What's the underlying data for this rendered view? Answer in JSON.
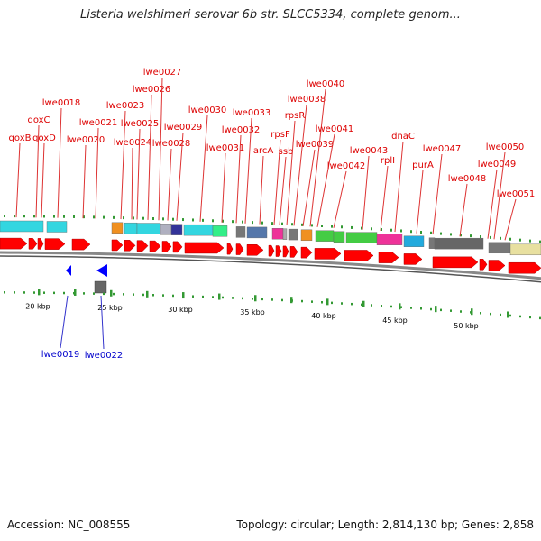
{
  "title": "Listeria welshimeri serovar 6b str. SLCC5334, complete genom...",
  "footer": {
    "accession": "Accession: NC_008555",
    "summary": "Topology: circular; Length: 2,814,130 bp; Genes: 2,858"
  },
  "colors": {
    "forward_label": "#dd0000",
    "reverse_label": "#0000cc",
    "cds": "#ff0000",
    "reverse_cds": "#0000ff"
  },
  "forward_gene_labels": [
    "qoxB",
    "qoxC",
    "qoxD",
    "lwe0018",
    "lwe0020",
    "lwe0021",
    "lwe0023",
    "lwe0024",
    "lwe0025",
    "lwe0026",
    "lwe0027",
    "lwe0028",
    "lwe0029",
    "lwe0030",
    "lwe0031",
    "lwe0032",
    "lwe0033",
    "arcA",
    "rpsF",
    "ssb",
    "rpsR",
    "lwe0038",
    "lwe0039",
    "lwe0040",
    "lwe0041",
    "lwe0042",
    "lwe0043",
    "rplI",
    "dnaC",
    "purA",
    "lwe0047",
    "lwe0048",
    "lwe0049",
    "lwe0050",
    "lwe0051"
  ],
  "reverse_gene_labels": [
    "lwe0019",
    "lwe0022"
  ],
  "scale_labels": [
    "20 kbp",
    "25 kbp",
    "30 kbp",
    "35 kbp",
    "40 kbp",
    "45 kbp",
    "50 kbp"
  ]
}
